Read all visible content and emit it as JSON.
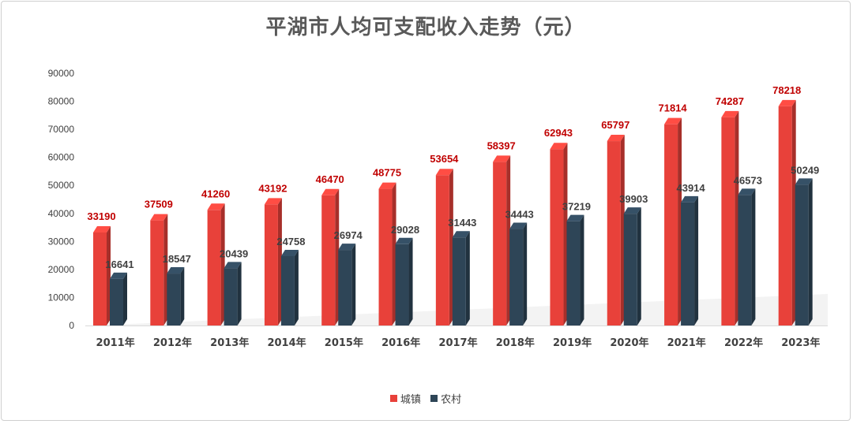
{
  "chart_data": {
    "type": "bar",
    "title": "平湖市人均可支配收入走势（元）",
    "categories": [
      "2011年",
      "2012年",
      "2013年",
      "2014年",
      "2015年",
      "2016年",
      "2017年",
      "2018年",
      "2019年",
      "2020年",
      "2021年",
      "2022年",
      "2023年"
    ],
    "series": [
      {
        "name": "城镇",
        "color": "#e8413a",
        "label_color": "#c00000",
        "values": [
          33190,
          37509,
          41260,
          43192,
          46470,
          48775,
          53654,
          58397,
          62943,
          65797,
          71814,
          74287,
          78218
        ]
      },
      {
        "name": "农村",
        "color": "#2e4557",
        "label_color": "#404040",
        "values": [
          16641,
          18547,
          20439,
          24758,
          26974,
          29028,
          31443,
          34443,
          37219,
          39903,
          43914,
          46573,
          50249
        ]
      }
    ],
    "ylim": [
      0,
      90000
    ],
    "yticks": [
      "0",
      "10000",
      "20000",
      "30000",
      "40000",
      "50000",
      "60000",
      "70000",
      "80000",
      "90000"
    ],
    "grid": false,
    "legend": "bottom",
    "style": "3d-bar"
  }
}
